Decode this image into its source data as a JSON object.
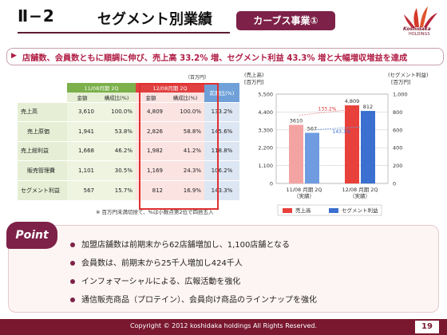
{
  "header": {
    "section_number": "Ⅱ−2",
    "title": "セグメント別業績",
    "tag": "カーブス事業①",
    "logo_name": "Koshidaka",
    "logo_sub": "HOLDINGS"
  },
  "headline": {
    "marker": "▶",
    "text": "店舗数、会員数ともに順調に伸び、売上高 33.2% 増、セグメント利益 43.3% 増と大幅増収増益を達成"
  },
  "table": {
    "unit": "（百万円）",
    "period_a": "11/08月期 2Q",
    "period_b": "12/08月期 2Q",
    "yoy_header": "前期比(%)",
    "sub_amount": "金額",
    "sub_ratio": "構成比(%)",
    "rows": [
      {
        "label": "売上高",
        "a_amount": "3,610",
        "a_ratio": "100.0%",
        "b_amount": "4,809",
        "b_ratio": "100.0%",
        "yoy": "133.2%"
      },
      {
        "label": "売上原価",
        "a_amount": "1,941",
        "a_ratio": "53.8%",
        "b_amount": "2,826",
        "b_ratio": "58.8%",
        "yoy": "145.6%"
      },
      {
        "label": "売上総利益",
        "a_amount": "1,668",
        "a_ratio": "46.2%",
        "b_amount": "1,982",
        "b_ratio": "41.2%",
        "yoy": "118.8%"
      },
      {
        "label": "販売管理費",
        "a_amount": "1,101",
        "a_ratio": "30.5%",
        "b_amount": "1,169",
        "b_ratio": "24.3%",
        "yoy": "106.2%"
      },
      {
        "label": "セグメント利益",
        "a_amount": "567",
        "a_ratio": "15.7%",
        "b_amount": "812",
        "b_ratio": "16.9%",
        "yoy": "143.3%"
      }
    ],
    "note": "※ 百万円未満切捨て、%は小数点第2位で四捨五入"
  },
  "chart_data": {
    "type": "bar",
    "categories": [
      "11/08 月期 2Q\n（実績）",
      "12/08 月期 2Q\n（実績）"
    ],
    "category_line1": [
      "11/08 月期 2Q",
      "12/08 月期 2Q"
    ],
    "category_line2": [
      "（実績）",
      "（実績）"
    ],
    "series": [
      {
        "name": "売上高",
        "axis": "left",
        "values": [
          3610,
          4809
        ],
        "color": "#f4a3a3"
      },
      {
        "name": "セグメント利益",
        "axis": "right",
        "values": [
          567,
          812
        ],
        "color": "#6f9be0"
      }
    ],
    "left_axis_label": "(売上高)",
    "left_axis_unit": "[百万円]",
    "right_axis_label": "(セグメント利益)",
    "right_axis_unit": "[百万円]",
    "left_ylim": [
      0,
      5500
    ],
    "left_ticks": [
      "0",
      "1,100",
      "2,200",
      "3,300",
      "4,400",
      "5,500"
    ],
    "right_ylim": [
      0,
      1000
    ],
    "right_ticks": [
      "0",
      "200",
      "400",
      "600",
      "800",
      "1,000"
    ],
    "data_labels_left": [
      "3610",
      "4,809"
    ],
    "data_labels_right": [
      "567",
      "812"
    ],
    "growth_labels": [
      "133.2%",
      "143.3%"
    ],
    "grid": true,
    "legend_position": "bottom"
  },
  "point": {
    "badge": "Point",
    "bullets": [
      "加盟店舗数は前期末から62店舗増加し、1,100店舗となる",
      "会員数は、前期末から25千人増加し424千人",
      "インフォマーシャルによる、広報活動を強化",
      "通信販売商品（プロテイン）、会員向け商品のラインナップを強化"
    ]
  },
  "footer": {
    "copyright": "Copyright © 2012 koshidaka holdings All Rights Reserved.",
    "page": "19"
  }
}
